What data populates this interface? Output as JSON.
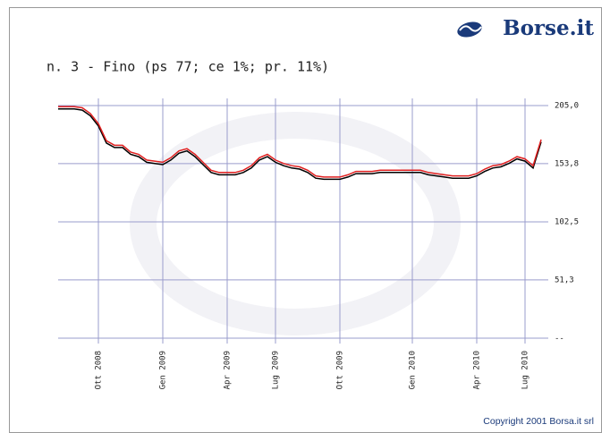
{
  "chart_data": {
    "type": "line",
    "logo": "Borse.it",
    "title": "n. 3 - Fino (ps 77; ce 1%; pr. 11%)",
    "copyright": "Copyright 2001 Borsa.it srl",
    "categories": [
      null,
      null,
      null,
      null,
      null,
      "Ott 2008",
      null,
      null,
      null,
      null,
      null,
      null,
      null,
      "Gen 2009",
      null,
      null,
      null,
      null,
      null,
      null,
      null,
      "Apr 2009",
      null,
      null,
      null,
      null,
      null,
      "Lug 2009",
      null,
      null,
      null,
      null,
      null,
      null,
      null,
      "Ott 2009",
      null,
      null,
      null,
      null,
      null,
      null,
      null,
      null,
      "Gen 2010",
      null,
      null,
      null,
      null,
      null,
      null,
      null,
      "Apr 2010",
      null,
      null,
      null,
      null,
      null,
      "Lug 2010",
      null,
      null
    ],
    "series": [
      {
        "color": "#000000",
        "values": [
          202,
          202,
          202,
          201,
          196,
          187,
          172,
          168,
          168,
          162,
          160,
          155,
          154,
          153,
          157,
          163,
          165,
          160,
          153,
          146,
          144,
          144,
          144,
          146,
          150,
          157,
          160,
          155,
          152,
          150,
          149,
          146,
          141,
          140,
          140,
          140,
          142,
          145,
          145,
          145,
          146,
          146,
          146,
          146,
          146,
          146,
          144,
          143,
          142,
          141,
          141,
          141,
          143,
          147,
          150,
          151,
          154,
          158,
          156,
          150,
          173
        ]
      },
      {
        "color": "#e02020",
        "values": [
          204,
          204,
          204,
          203,
          198,
          189,
          174,
          170,
          170,
          164,
          162,
          157,
          156,
          155,
          159,
          165,
          167,
          162,
          155,
          148,
          146,
          146,
          146,
          148,
          152,
          159,
          162,
          157,
          154,
          152,
          151,
          148,
          143,
          142,
          142,
          142,
          144,
          147,
          147,
          147,
          148,
          148,
          148,
          148,
          148,
          148,
          146,
          145,
          144,
          143,
          143,
          143,
          145,
          149,
          152,
          153,
          156,
          160,
          158,
          152,
          175
        ]
      }
    ],
    "ylim": [
      0,
      205
    ],
    "yticks": [
      {
        "value": 0,
        "label": "--"
      },
      {
        "value": 51.3,
        "label": "51,3"
      },
      {
        "value": 102.5,
        "label": "102,5"
      },
      {
        "value": 153.8,
        "label": "153,8"
      },
      {
        "value": 205,
        "label": "205,0"
      }
    ],
    "grid": true
  }
}
